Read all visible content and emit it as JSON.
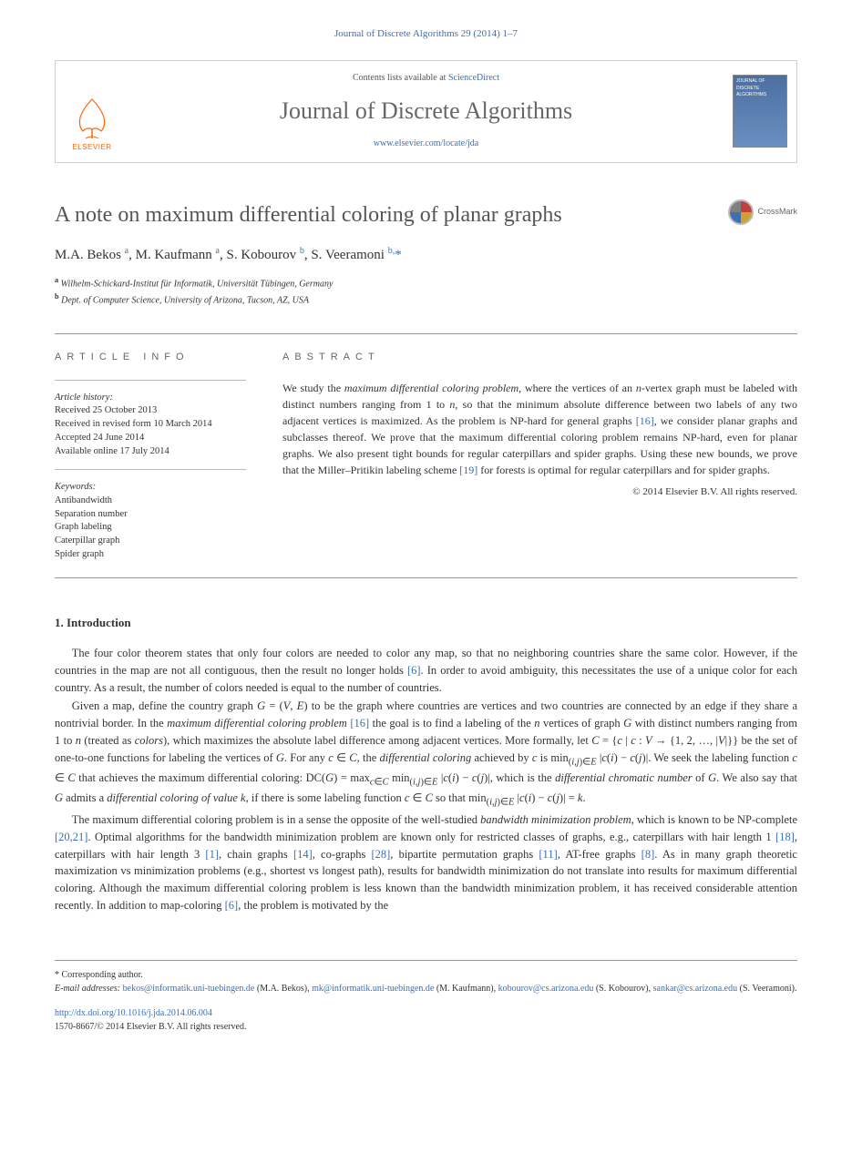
{
  "header_link": "Journal of Discrete Algorithms 29 (2014) 1–7",
  "banner": {
    "contents_prefix": "Contents lists available at ",
    "contents_link": "ScienceDirect",
    "journal_name": "Journal of Discrete Algorithms",
    "journal_url": "www.elsevier.com/locate/jda",
    "publisher_label": "ELSEVIER",
    "cover_text": "JOURNAL OF DISCRETE ALGORITHMS"
  },
  "title": "A note on maximum differential coloring of planar graphs",
  "crossmark_label": "CrossMark",
  "authors_html": "M.A. Bekos <sup>a</sup>, M. Kaufmann <sup>a</sup>, S. Kobourov <sup>b</sup>, S. Veeramoni <sup>b,</sup><span class='star'>*</span>",
  "affiliations": [
    {
      "sup": "a",
      "text": "Wilhelm-Schickard-Institut für Informatik, Universität Tübingen, Germany"
    },
    {
      "sup": "b",
      "text": "Dept. of Computer Science, University of Arizona, Tucson, AZ, USA"
    }
  ],
  "info": {
    "label": "article info",
    "history_heading": "Article history:",
    "history": [
      "Received 25 October 2013",
      "Received in revised form 10 March 2014",
      "Accepted 24 June 2014",
      "Available online 17 July 2014"
    ],
    "keywords_heading": "Keywords:",
    "keywords": [
      "Antibandwidth",
      "Separation number",
      "Graph labeling",
      "Caterpillar graph",
      "Spider graph"
    ]
  },
  "abstract": {
    "label": "abstract",
    "text_html": "We study the <i>maximum differential coloring problem</i>, where the vertices of an <i>n</i>-vertex graph must be labeled with distinct numbers ranging from 1 to <i>n</i>, so that the minimum absolute difference between two labels of any two adjacent vertices is maximized. As the problem is <span class='smallcaps'>NP</span>-hard for general graphs <span class='ref'>[16]</span>, we consider planar graphs and subclasses thereof. We prove that the maximum differential coloring problem remains <span class='smallcaps'>NP</span>-hard, even for planar graphs. We also present tight bounds for regular caterpillars and spider graphs. Using these new bounds, we prove that the Miller–Pritikin labeling scheme <span class='ref'>[19]</span> for forests is optimal for regular caterpillars and for spider graphs.",
    "copyright": "© 2014 Elsevier B.V. All rights reserved."
  },
  "section1": {
    "heading": "1. Introduction",
    "paragraphs": [
      "The four color theorem states that only four colors are needed to color any map, so that no neighboring countries share the same color. However, if the countries in the map are not all contiguous, then the result no longer holds <span class='ref'>[6]</span>. In order to avoid ambiguity, this necessitates the use of a unique color for each country. As a result, the number of colors needed is equal to the number of countries.",
      "Given a map, define the country graph <i>G</i> = (<i>V</i>, <i>E</i>) to be the graph where countries are vertices and two countries are connected by an edge if they share a nontrivial border. In the <i>maximum differential coloring problem</i> <span class='ref'>[16]</span> the goal is to find a labeling of the <i>n</i> vertices of graph <i>G</i> with distinct numbers ranging from 1 to <i>n</i> (treated as <i>colors</i>), which maximizes the absolute label difference among adjacent vertices. More formally, let <i>C</i> = {<i>c</i> | <i>c</i> : <i>V</i> → {1, 2, …, |<i>V</i>|}} be the set of one-to-one functions for labeling the vertices of <i>G</i>. For any <i>c</i> ∈ <i>C</i>, the <i>differential coloring</i> achieved by <i>c</i> is min<sub>(<i>i</i>,<i>j</i>)∈<i>E</i></sub> |<i>c</i>(<i>i</i>) − <i>c</i>(<i>j</i>)|. We seek the labeling function <i>c</i> ∈ <i>C</i> that achieves the maximum differential coloring: DC(<i>G</i>) = max<sub><i>c</i>∈<i>C</i></sub> min<sub>(<i>i</i>,<i>j</i>)∈<i>E</i></sub> |<i>c</i>(<i>i</i>) − <i>c</i>(<i>j</i>)|, which is the <i>differential chromatic number</i> of <i>G</i>. We also say that <i>G</i> admits a <i>differential coloring of value k</i>, if there is some labeling function <i>c</i> ∈ <i>C</i> so that min<sub>(<i>i</i>,<i>j</i>)∈<i>E</i></sub> |<i>c</i>(<i>i</i>) − <i>c</i>(<i>j</i>)| = <i>k</i>.",
      "The maximum differential coloring problem is in a sense the opposite of the well-studied <i>bandwidth minimization problem</i>, which is known to be <span class='smallcaps'>NP</span>-complete <span class='ref'>[20,21]</span>. Optimal algorithms for the bandwidth minimization problem are known only for restricted classes of graphs, e.g., caterpillars with hair length 1 <span class='ref'>[18]</span>, caterpillars with hair length 3 <span class='ref'>[1]</span>, chain graphs <span class='ref'>[14]</span>, co-graphs <span class='ref'>[28]</span>, bipartite permutation graphs <span class='ref'>[11]</span>, AT-free graphs <span class='ref'>[8]</span>. As in many graph theoretic maximization vs minimization problems (e.g., shortest vs longest path), results for bandwidth minimization do not translate into results for maximum differential coloring. Although the maximum differential coloring problem is less known than the bandwidth minimization problem, it has received considerable attention recently. In addition to map-coloring <span class='ref'>[6]</span>, the problem is motivated by the"
    ]
  },
  "footnotes": {
    "corresponding": "Corresponding author.",
    "email_label": "E-mail addresses:",
    "emails": [
      {
        "addr": "bekos@informatik.uni-tuebingen.de",
        "name": "(M.A. Bekos)"
      },
      {
        "addr": "mk@informatik.uni-tuebingen.de",
        "name": "(M. Kaufmann)"
      },
      {
        "addr": "kobourov@cs.arizona.edu",
        "name": "(S. Kobourov)"
      },
      {
        "addr": "sankar@cs.arizona.edu",
        "name": "(S. Veeramoni)"
      }
    ],
    "doi": "http://dx.doi.org/10.1016/j.jda.2014.06.004",
    "issn_line": "1570-8667/© 2014 Elsevier B.V. All rights reserved."
  },
  "colors": {
    "link": "#3a6fb7",
    "text": "#333333",
    "title_gray": "#555555",
    "elsevier_orange": "#ff6600",
    "border": "#d0d0d0"
  }
}
